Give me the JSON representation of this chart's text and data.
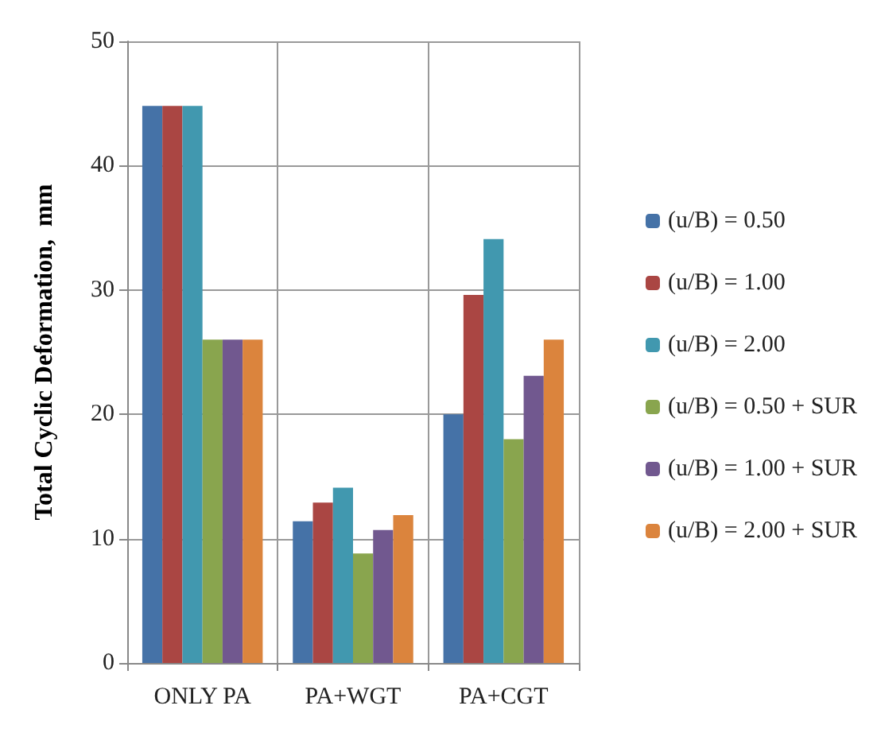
{
  "chart_data": {
    "type": "bar",
    "ylabel": "Total Cyclic Deformation,  mm",
    "categories": [
      "ONLY PA",
      "PA+WGT",
      "PA+CGT"
    ],
    "series": [
      {
        "name": "(u/B) = 0.50",
        "color": "#4572a7",
        "values": [
          44.8,
          11.4,
          20
        ]
      },
      {
        "name": "(u/B) = 1.00",
        "color": "#aa4643",
        "values": [
          44.8,
          12.9,
          29.6
        ]
      },
      {
        "name": "(u/B) = 2.00",
        "color": "#4198af",
        "values": [
          44.8,
          14.1,
          34.1
        ]
      },
      {
        "name": "(u/B) = 0.50 + SUR",
        "color": "#89a54e",
        "values": [
          26,
          8.8,
          18
        ]
      },
      {
        "name": "(u/B) = 1.00 + SUR",
        "color": "#71588f",
        "values": [
          26,
          10.7,
          23.1
        ]
      },
      {
        "name": "(u/B) = 2.00 + SUR",
        "color": "#db843d",
        "values": [
          26,
          11.9,
          26
        ]
      }
    ],
    "ylim": [
      0,
      50
    ],
    "yticks": [
      0,
      10,
      20,
      30,
      40,
      50
    ],
    "grid": true,
    "legend": "right"
  }
}
